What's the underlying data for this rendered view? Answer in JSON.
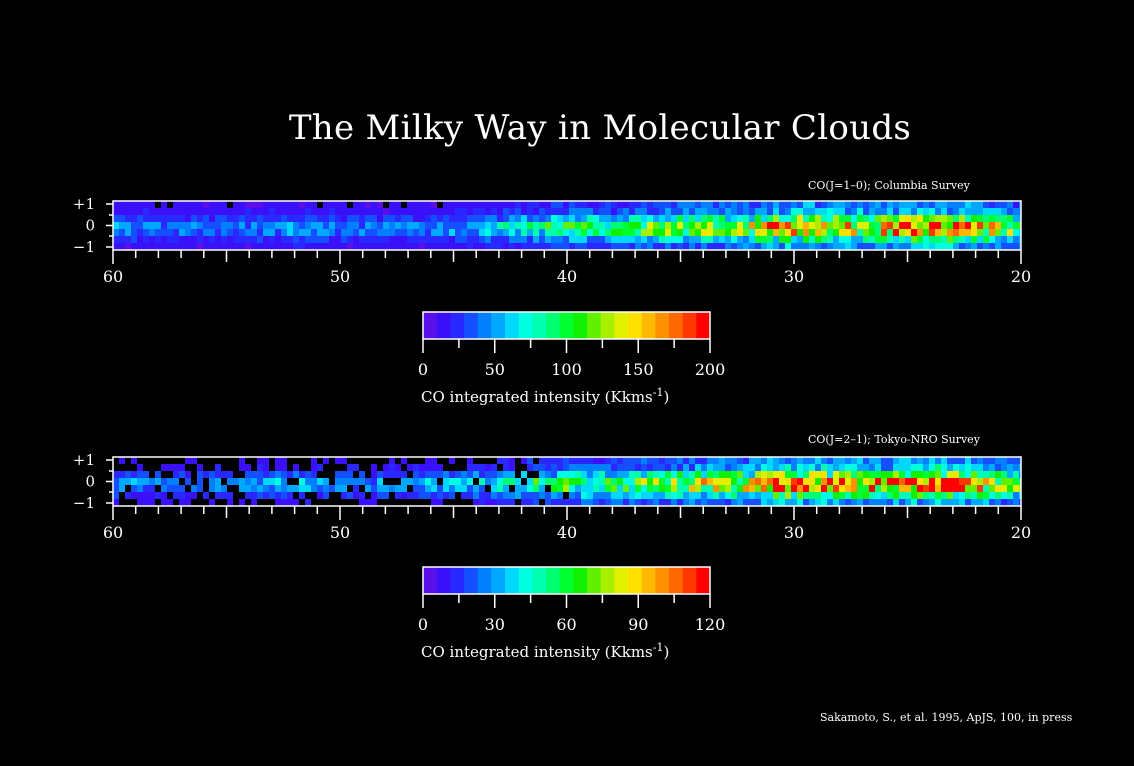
{
  "title": "The Milky Way in Molecular Clouds",
  "credit": "Sakamoto, S., et al. 1995, ApJS, 100, in press",
  "colormap": [
    "#5a10e8",
    "#3a10f8",
    "#2828ff",
    "#1450ff",
    "#0080ff",
    "#00a8ff",
    "#00d8ff",
    "#00ffe0",
    "#00ffb0",
    "#00ff70",
    "#00ff30",
    "#10f000",
    "#60f000",
    "#a8f000",
    "#e0f000",
    "#ffe000",
    "#ffb800",
    "#ff9000",
    "#ff6800",
    "#ff3800",
    "#ff0000"
  ],
  "chart_data": [
    {
      "type": "heatmap",
      "survey_label": "CO(J=1–0);     Columbia Survey",
      "x_ticks": [
        60,
        50,
        40,
        30,
        20
      ],
      "y_ticks": [
        "+1",
        "0",
        "−1"
      ],
      "xlim": [
        60,
        20
      ],
      "ylim": [
        -1,
        1
      ],
      "colorbar": {
        "range": [
          0,
          200
        ],
        "ticks": [
          0,
          50,
          100,
          150,
          200
        ],
        "label": "CO integrated intensity  (Kkms",
        "label_sup": "-1",
        "label_end": ")"
      },
      "intensity_profile": {
        "l": [
          60,
          56,
          52,
          48,
          44,
          42,
          40,
          38,
          36,
          34,
          32,
          31,
          30,
          28,
          26,
          25,
          24,
          23,
          22,
          21,
          20
        ],
        "peak": [
          50,
          45,
          55,
          45,
          60,
          85,
          110,
          100,
          130,
          140,
          150,
          200,
          200,
          170,
          170,
          200,
          210,
          200,
          180,
          150,
          120
        ]
      }
    },
    {
      "type": "heatmap",
      "survey_label": "CO(J=2–1);  Tokyo-NRO Survey",
      "x_ticks": [
        60,
        50,
        40,
        30,
        20
      ],
      "y_ticks": [
        "+1",
        "0",
        "−1"
      ],
      "xlim": [
        60,
        20
      ],
      "ylim": [
        -1,
        1
      ],
      "colorbar": {
        "range": [
          0,
          120
        ],
        "ticks": [
          0,
          30,
          60,
          90,
          120
        ],
        "label": "CO integrated intensity  (Kkms",
        "label_sup": "-1",
        "label_end": ")"
      },
      "intensity_profile": {
        "l": [
          60,
          56,
          52,
          48,
          44,
          42,
          40,
          38,
          36,
          34,
          32,
          31,
          30,
          28,
          26,
          25,
          24,
          23,
          22,
          21,
          20
        ],
        "peak": [
          30,
          28,
          35,
          30,
          40,
          55,
          70,
          65,
          80,
          90,
          95,
          125,
          125,
          110,
          105,
          120,
          130,
          120,
          110,
          90,
          70
        ]
      }
    }
  ]
}
